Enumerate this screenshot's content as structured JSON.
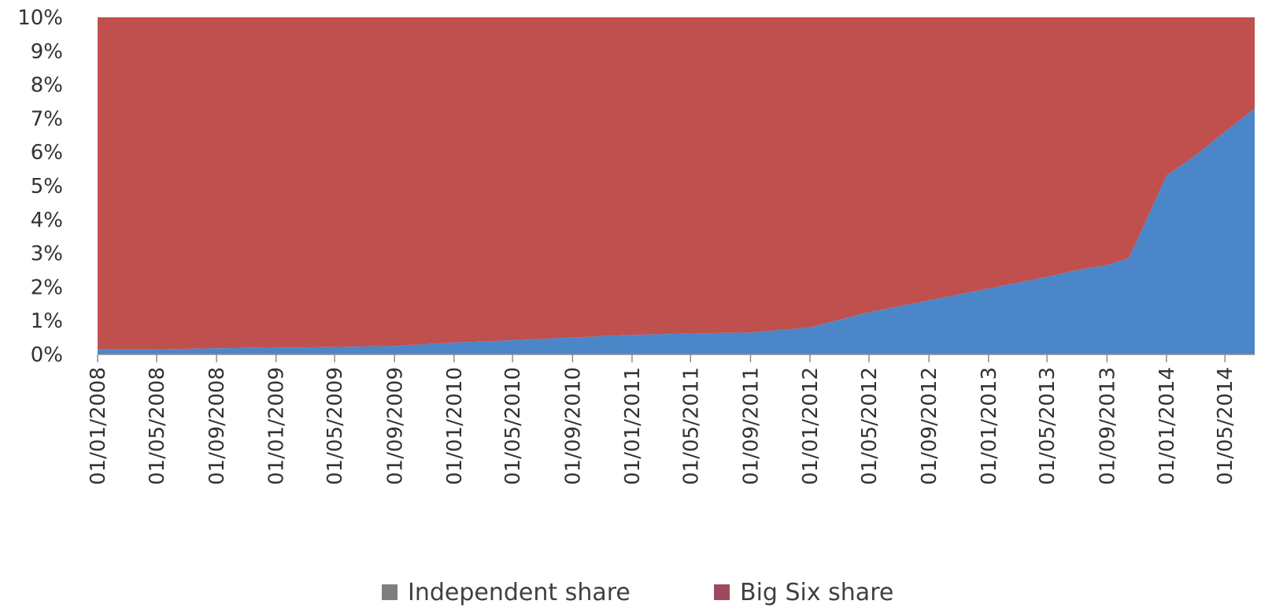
{
  "chart_data": {
    "type": "area",
    "stacked": true,
    "x_tick_labels": [
      "01/01/2008",
      "01/05/2008",
      "01/09/2008",
      "01/01/2009",
      "01/05/2009",
      "01/09/2009",
      "01/01/2010",
      "01/05/2010",
      "01/09/2010",
      "01/01/2011",
      "01/05/2011",
      "01/09/2011",
      "01/01/2012",
      "01/05/2012",
      "01/09/2012",
      "01/01/2013",
      "01/05/2013",
      "01/09/2013",
      "01/01/2014",
      "01/05/2014"
    ],
    "y_tick_labels": [
      "0%",
      "1%",
      "2%",
      "3%",
      "4%",
      "5%",
      "6%",
      "7%",
      "8%",
      "9%",
      "10%"
    ],
    "ylim": [
      0,
      10
    ],
    "xlim": [
      "2008-01-01",
      "2014-07-01"
    ],
    "legend_position": "bottom",
    "series": [
      {
        "name": "Independent share",
        "color": "#4a86c8",
        "legend_color": "#7f7f7f",
        "points": [
          [
            "2008-01-01",
            0.15
          ],
          [
            "2008-05-01",
            0.15
          ],
          [
            "2008-09-01",
            0.18
          ],
          [
            "2009-01-01",
            0.2
          ],
          [
            "2009-05-01",
            0.22
          ],
          [
            "2009-09-01",
            0.25
          ],
          [
            "2010-01-01",
            0.35
          ],
          [
            "2010-05-01",
            0.42
          ],
          [
            "2010-09-01",
            0.5
          ],
          [
            "2011-01-01",
            0.58
          ],
          [
            "2011-05-01",
            0.62
          ],
          [
            "2011-09-01",
            0.65
          ],
          [
            "2012-01-01",
            0.8
          ],
          [
            "2012-05-01",
            1.25
          ],
          [
            "2012-09-01",
            1.6
          ],
          [
            "2013-01-01",
            1.95
          ],
          [
            "2013-05-01",
            2.3
          ],
          [
            "2013-07-01",
            2.5
          ],
          [
            "2013-09-01",
            2.65
          ],
          [
            "2013-10-15",
            2.85
          ],
          [
            "2013-11-15",
            3.8
          ],
          [
            "2014-01-01",
            5.3
          ],
          [
            "2014-03-01",
            5.9
          ],
          [
            "2014-05-01",
            6.6
          ],
          [
            "2014-07-01",
            7.3
          ]
        ]
      },
      {
        "name": "Big Six share",
        "color": "#c0504d",
        "legend_color": "#9e4a5e",
        "fills_to": 10
      }
    ]
  }
}
